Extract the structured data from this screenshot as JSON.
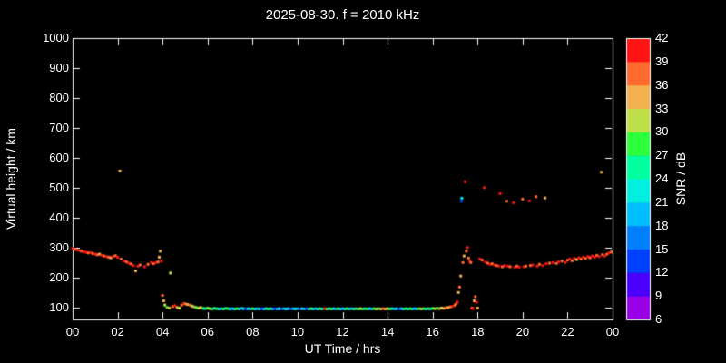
{
  "title": "2025-08-30. f = 2010 kHz",
  "colors": {
    "background": "#000000",
    "foreground": "#ffffff"
  },
  "chart_data": {
    "type": "scatter",
    "title": "2025-08-30. f = 2010 kHz",
    "xlabel": "UT Time / hrs",
    "ylabel": "Virtual height / km",
    "xlim": [
      0,
      24
    ],
    "ylim": [
      60,
      1000
    ],
    "grid": false,
    "xticks": {
      "values": [
        0,
        2,
        4,
        6,
        8,
        10,
        12,
        14,
        16,
        18,
        20,
        22,
        24
      ],
      "labels": [
        "00",
        "02",
        "04",
        "06",
        "08",
        "10",
        "12",
        "14",
        "16",
        "18",
        "20",
        "22",
        "00"
      ]
    },
    "yticks": [
      100,
      200,
      300,
      400,
      500,
      600,
      700,
      800,
      900,
      1000
    ],
    "colorbar": {
      "label": "SNR / dB",
      "min": 6,
      "max": 42,
      "ticks": [
        6,
        9,
        12,
        15,
        18,
        21,
        24,
        27,
        30,
        33,
        36,
        39,
        42
      ],
      "segment_colors": [
        "#9a00e6",
        "#4b00ff",
        "#0040ff",
        "#0080ff",
        "#00bfff",
        "#00efe0",
        "#00ff9f",
        "#2eff3c",
        "#bfe04a",
        "#f2b14e",
        "#ff6a2e",
        "#ff1414"
      ]
    },
    "points_format": [
      "time_hrs",
      "height_km",
      "snr_db"
    ],
    "points": [
      [
        0.0,
        297,
        40
      ],
      [
        0.1,
        294,
        38
      ],
      [
        0.2,
        292,
        40
      ],
      [
        0.3,
        290,
        40
      ],
      [
        0.4,
        288,
        38
      ],
      [
        0.5,
        286,
        40
      ],
      [
        0.6,
        284,
        40
      ],
      [
        0.7,
        282,
        38
      ],
      [
        0.8,
        283,
        40
      ],
      [
        0.9,
        280,
        38
      ],
      [
        1.0,
        278,
        40
      ],
      [
        1.1,
        276,
        38
      ],
      [
        1.2,
        278,
        35
      ],
      [
        1.3,
        274,
        40
      ],
      [
        1.4,
        272,
        38
      ],
      [
        1.5,
        270,
        40
      ],
      [
        1.6,
        268,
        38
      ],
      [
        1.7,
        266,
        35
      ],
      [
        1.8,
        270,
        40
      ],
      [
        1.9,
        273,
        38
      ],
      [
        2.0,
        268,
        40
      ],
      [
        2.1,
        556,
        34
      ],
      [
        2.15,
        262,
        38
      ],
      [
        2.3,
        255,
        40
      ],
      [
        2.4,
        252,
        38
      ],
      [
        2.5,
        248,
        40
      ],
      [
        2.6,
        245,
        38
      ],
      [
        2.7,
        240,
        40
      ],
      [
        2.8,
        222,
        35
      ],
      [
        2.9,
        238,
        40
      ],
      [
        3.0,
        242,
        38
      ],
      [
        3.2,
        236,
        40
      ],
      [
        3.35,
        244,
        38
      ],
      [
        3.5,
        250,
        40
      ],
      [
        3.6,
        246,
        38
      ],
      [
        3.7,
        250,
        40
      ],
      [
        3.8,
        252,
        38
      ],
      [
        3.85,
        268,
        35
      ],
      [
        3.9,
        288,
        34
      ],
      [
        3.95,
        255,
        40
      ],
      [
        4.0,
        140,
        38
      ],
      [
        4.05,
        122,
        35
      ],
      [
        4.1,
        108,
        31
      ],
      [
        4.2,
        100,
        27
      ],
      [
        4.3,
        98,
        35
      ],
      [
        4.35,
        215,
        31
      ],
      [
        4.45,
        103,
        38
      ],
      [
        4.55,
        106,
        40
      ],
      [
        4.65,
        100,
        35
      ],
      [
        4.75,
        98,
        31
      ],
      [
        4.85,
        108,
        38
      ],
      [
        4.95,
        113,
        40
      ],
      [
        5.0,
        112,
        38
      ],
      [
        5.1,
        110,
        35
      ],
      [
        5.2,
        108,
        38
      ],
      [
        5.3,
        105,
        31
      ],
      [
        5.4,
        102,
        35
      ],
      [
        5.5,
        100,
        27
      ],
      [
        5.6,
        98,
        31
      ],
      [
        5.7,
        100,
        35
      ],
      [
        5.8,
        97,
        27
      ],
      [
        5.9,
        96,
        22
      ],
      [
        6.0,
        98,
        27
      ],
      [
        6.1,
        96,
        31
      ],
      [
        6.2,
        95,
        27
      ],
      [
        6.3,
        97,
        22
      ],
      [
        6.4,
        96,
        27
      ],
      [
        6.5,
        95,
        22
      ],
      [
        6.6,
        96,
        18
      ],
      [
        6.7,
        95,
        27
      ],
      [
        6.8,
        97,
        22
      ],
      [
        6.9,
        96,
        27
      ],
      [
        7.0,
        95,
        22
      ],
      [
        7.1,
        96,
        18
      ],
      [
        7.2,
        95,
        22
      ],
      [
        7.3,
        96,
        27
      ],
      [
        7.4,
        95,
        22
      ],
      [
        7.5,
        97,
        18
      ],
      [
        7.6,
        96,
        22
      ],
      [
        7.7,
        95,
        13
      ],
      [
        7.8,
        96,
        22
      ],
      [
        7.9,
        95,
        18
      ],
      [
        8.0,
        96,
        27
      ],
      [
        8.1,
        95,
        22
      ],
      [
        8.2,
        96,
        18
      ],
      [
        8.3,
        95,
        22
      ],
      [
        8.4,
        96,
        13
      ],
      [
        8.5,
        95,
        18
      ],
      [
        8.6,
        96,
        22
      ],
      [
        8.7,
        95,
        27
      ],
      [
        8.8,
        96,
        22
      ],
      [
        8.9,
        95,
        18
      ],
      [
        9.0,
        96,
        13
      ],
      [
        9.1,
        95,
        18
      ],
      [
        9.2,
        96,
        22
      ],
      [
        9.3,
        95,
        13
      ],
      [
        9.4,
        96,
        18
      ],
      [
        9.5,
        95,
        22
      ],
      [
        9.6,
        96,
        18
      ],
      [
        9.7,
        95,
        13
      ],
      [
        9.8,
        96,
        18
      ],
      [
        9.9,
        95,
        22
      ],
      [
        10.0,
        96,
        18
      ],
      [
        10.1,
        95,
        13
      ],
      [
        10.2,
        96,
        22
      ],
      [
        10.3,
        95,
        18
      ],
      [
        10.4,
        96,
        13
      ],
      [
        10.5,
        95,
        22
      ],
      [
        10.6,
        96,
        27
      ],
      [
        10.7,
        95,
        22
      ],
      [
        10.8,
        96,
        18
      ],
      [
        10.9,
        95,
        22
      ],
      [
        11.0,
        96,
        27
      ],
      [
        11.1,
        95,
        22
      ],
      [
        11.2,
        96,
        40
      ],
      [
        11.3,
        95,
        27
      ],
      [
        11.4,
        96,
        22
      ],
      [
        11.5,
        95,
        27
      ],
      [
        11.6,
        96,
        22
      ],
      [
        11.7,
        95,
        18
      ],
      [
        11.8,
        96,
        27
      ],
      [
        11.9,
        95,
        22
      ],
      [
        12.0,
        96,
        18
      ],
      [
        12.1,
        95,
        22
      ],
      [
        12.2,
        96,
        27
      ],
      [
        12.3,
        95,
        22
      ],
      [
        12.4,
        96,
        18
      ],
      [
        12.5,
        95,
        27
      ],
      [
        12.6,
        96,
        22
      ],
      [
        12.7,
        95,
        27
      ],
      [
        12.8,
        96,
        31
      ],
      [
        12.9,
        95,
        27
      ],
      [
        13.0,
        96,
        22
      ],
      [
        13.1,
        95,
        27
      ],
      [
        13.2,
        96,
        22
      ],
      [
        13.3,
        95,
        18
      ],
      [
        13.4,
        96,
        27
      ],
      [
        13.5,
        95,
        31
      ],
      [
        13.6,
        96,
        27
      ],
      [
        13.7,
        95,
        35
      ],
      [
        13.8,
        96,
        38
      ],
      [
        13.9,
        95,
        35
      ],
      [
        14.0,
        96,
        31
      ],
      [
        14.1,
        95,
        27
      ],
      [
        14.2,
        96,
        22
      ],
      [
        14.3,
        95,
        18
      ],
      [
        14.4,
        96,
        22
      ],
      [
        14.5,
        95,
        13
      ],
      [
        14.6,
        96,
        18
      ],
      [
        14.7,
        95,
        22
      ],
      [
        14.8,
        96,
        27
      ],
      [
        14.9,
        95,
        22
      ],
      [
        15.0,
        96,
        27
      ],
      [
        15.1,
        95,
        22
      ],
      [
        15.2,
        96,
        18
      ],
      [
        15.3,
        95,
        22
      ],
      [
        15.4,
        96,
        27
      ],
      [
        15.5,
        95,
        31
      ],
      [
        15.6,
        96,
        27
      ],
      [
        15.7,
        95,
        22
      ],
      [
        15.8,
        96,
        27
      ],
      [
        15.9,
        95,
        22
      ],
      [
        16.0,
        97,
        27
      ],
      [
        16.1,
        96,
        31
      ],
      [
        16.2,
        97,
        27
      ],
      [
        16.3,
        96,
        35
      ],
      [
        16.4,
        98,
        31
      ],
      [
        16.5,
        97,
        35
      ],
      [
        16.6,
        99,
        38
      ],
      [
        16.7,
        100,
        35
      ],
      [
        16.8,
        102,
        38
      ],
      [
        16.9,
        104,
        40
      ],
      [
        17.0,
        108,
        38
      ],
      [
        17.05,
        112,
        38
      ],
      [
        17.1,
        118,
        40
      ],
      [
        17.15,
        150,
        35
      ],
      [
        17.2,
        168,
        38
      ],
      [
        17.25,
        205,
        35
      ],
      [
        17.28,
        455,
        13
      ],
      [
        17.3,
        465,
        22
      ],
      [
        17.35,
        250,
        38
      ],
      [
        17.4,
        272,
        35
      ],
      [
        17.45,
        520,
        40
      ],
      [
        17.5,
        288,
        38
      ],
      [
        17.55,
        300,
        40
      ],
      [
        17.6,
        265,
        38
      ],
      [
        17.65,
        255,
        40
      ],
      [
        17.7,
        250,
        38
      ],
      [
        17.75,
        98,
        38
      ],
      [
        17.8,
        96,
        40
      ],
      [
        17.85,
        122,
        35
      ],
      [
        17.9,
        136,
        38
      ],
      [
        17.95,
        118,
        40
      ],
      [
        18.0,
        98,
        35
      ],
      [
        18.1,
        262,
        40
      ],
      [
        18.2,
        258,
        38
      ],
      [
        18.3,
        500,
        40
      ],
      [
        18.35,
        252,
        40
      ],
      [
        18.45,
        248,
        38
      ],
      [
        18.55,
        244,
        40
      ],
      [
        18.65,
        246,
        38
      ],
      [
        18.75,
        242,
        40
      ],
      [
        18.85,
        240,
        38
      ],
      [
        18.95,
        238,
        40
      ],
      [
        19.0,
        480,
        40
      ],
      [
        19.1,
        236,
        38
      ],
      [
        19.2,
        240,
        40
      ],
      [
        19.3,
        455,
        38
      ],
      [
        19.35,
        238,
        40
      ],
      [
        19.45,
        236,
        38
      ],
      [
        19.6,
        450,
        40
      ],
      [
        19.65,
        234,
        40
      ],
      [
        19.75,
        238,
        38
      ],
      [
        19.85,
        235,
        40
      ],
      [
        20.0,
        462,
        38
      ],
      [
        20.05,
        236,
        40
      ],
      [
        20.15,
        238,
        38
      ],
      [
        20.3,
        456,
        40
      ],
      [
        20.35,
        240,
        38
      ],
      [
        20.45,
        242,
        40
      ],
      [
        20.6,
        470,
        38
      ],
      [
        20.65,
        238,
        40
      ],
      [
        20.75,
        244,
        38
      ],
      [
        20.9,
        240,
        40
      ],
      [
        21.0,
        466,
        35
      ],
      [
        21.05,
        246,
        40
      ],
      [
        21.2,
        248,
        38
      ],
      [
        21.35,
        250,
        40
      ],
      [
        21.5,
        247,
        38
      ],
      [
        21.6,
        252,
        40
      ],
      [
        21.75,
        255,
        38
      ],
      [
        21.9,
        250,
        40
      ],
      [
        22.0,
        258,
        38
      ],
      [
        22.1,
        262,
        40
      ],
      [
        22.2,
        256,
        38
      ],
      [
        22.3,
        264,
        40
      ],
      [
        22.4,
        260,
        35
      ],
      [
        22.5,
        266,
        40
      ],
      [
        22.6,
        262,
        38
      ],
      [
        22.7,
        268,
        40
      ],
      [
        22.8,
        264,
        38
      ],
      [
        22.9,
        270,
        40
      ],
      [
        23.0,
        266,
        38
      ],
      [
        23.1,
        272,
        40
      ],
      [
        23.2,
        268,
        40
      ],
      [
        23.3,
        274,
        38
      ],
      [
        23.4,
        270,
        40
      ],
      [
        23.5,
        552,
        34
      ],
      [
        23.55,
        276,
        38
      ],
      [
        23.65,
        272,
        40
      ],
      [
        23.75,
        278,
        38
      ],
      [
        23.85,
        282,
        40
      ],
      [
        23.95,
        285,
        38
      ]
    ]
  }
}
